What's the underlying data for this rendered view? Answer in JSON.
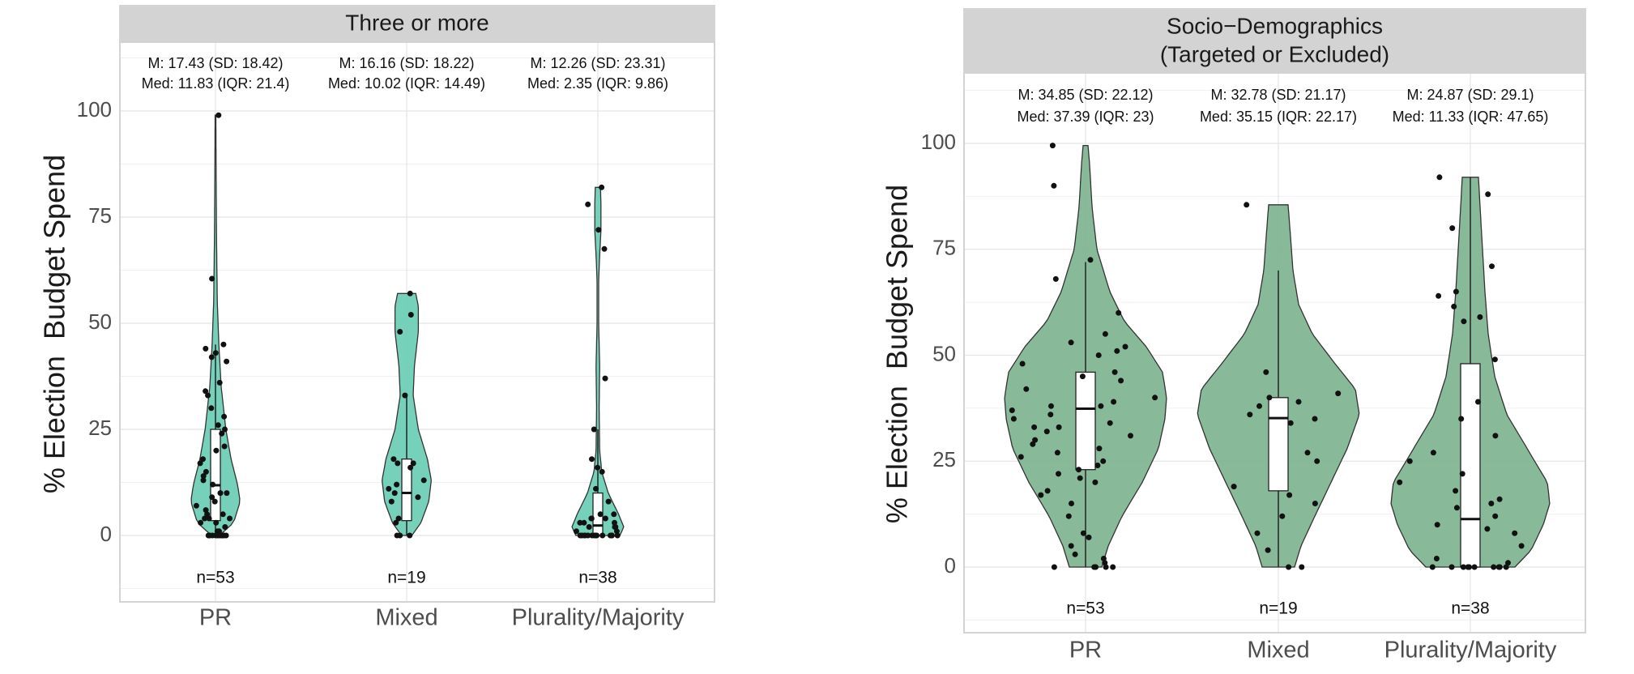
{
  "chart_data": [
    {
      "type": "violin",
      "facet_title": "Three or more",
      "ylabel": "% Election  Budget Spend",
      "ylim": [
        -15,
        115
      ],
      "y_ticks": [
        0,
        25,
        50,
        75,
        100
      ],
      "grid": true,
      "fill_color": "#6ecfb5",
      "categories": [
        {
          "label": "PR",
          "n_label": "n=53",
          "stats_line1": "M: 17.43 (SD: 18.42)",
          "stats_line2": "Med: 11.83 (IQR: 21.4)",
          "median": 11.83,
          "q1": 3.5,
          "q3": 25,
          "whisker_low": 0,
          "whisker_high": 45,
          "max": 99,
          "density_profile": [
            [
              0,
              0.15
            ],
            [
              3,
              0.7
            ],
            [
              8,
              0.95
            ],
            [
              12,
              0.85
            ],
            [
              18,
              0.6
            ],
            [
              25,
              0.4
            ],
            [
              35,
              0.22
            ],
            [
              45,
              0.13
            ],
            [
              55,
              0.07
            ],
            [
              70,
              0.04
            ],
            [
              85,
              0.025
            ],
            [
              99,
              0.015
            ]
          ],
          "points": [
            99,
            60.5,
            45,
            44,
            43,
            41,
            42,
            36,
            34,
            33,
            30,
            28,
            26,
            25,
            24,
            21,
            20,
            18,
            17,
            15,
            14,
            13,
            12,
            10,
            10,
            9,
            8,
            7,
            6,
            5,
            5,
            4,
            4,
            4,
            3,
            3,
            2,
            1,
            1,
            0,
            0,
            0,
            0,
            0,
            0,
            0,
            0,
            0,
            0,
            0,
            0,
            0,
            0
          ]
        },
        {
          "label": "Mixed",
          "n_label": "n=19",
          "stats_line1": "M: 16.16 (SD: 18.22)",
          "stats_line2": "Med: 10.02 (IQR: 14.49)",
          "median": 10.02,
          "q1": 3.5,
          "q3": 18,
          "whisker_low": 0,
          "whisker_high": 33.5,
          "max": 57,
          "density_profile": [
            [
              0,
              0.2
            ],
            [
              3,
              0.55
            ],
            [
              8,
              0.85
            ],
            [
              13,
              0.95
            ],
            [
              18,
              0.8
            ],
            [
              25,
              0.45
            ],
            [
              33,
              0.25
            ],
            [
              40,
              0.3
            ],
            [
              48,
              0.45
            ],
            [
              54,
              0.45
            ],
            [
              57,
              0.35
            ]
          ],
          "points": [
            57,
            52,
            48,
            33,
            18,
            17,
            17,
            16,
            13,
            12,
            11,
            10,
            9,
            8,
            4,
            3,
            0,
            0,
            0
          ]
        },
        {
          "label": "Plurality/Majority",
          "n_label": "n=38",
          "stats_line1": "M: 12.26 (SD: 23.31)",
          "stats_line2": "Med: 2.35 (IQR: 9.86)",
          "median": 2.35,
          "q1": 0,
          "q3": 10,
          "whisker_low": 0,
          "whisker_high": 25,
          "max": 82,
          "density_profile": [
            [
              0,
              0.85
            ],
            [
              2,
              1.0
            ],
            [
              5,
              0.8
            ],
            [
              10,
              0.4
            ],
            [
              15,
              0.15
            ],
            [
              20,
              0.07
            ],
            [
              30,
              0.05
            ],
            [
              40,
              0.07
            ],
            [
              50,
              0.03
            ],
            [
              60,
              0.03
            ],
            [
              66,
              0.07
            ],
            [
              72,
              0.12
            ],
            [
              78,
              0.12
            ],
            [
              82,
              0.1
            ]
          ],
          "points": [
            82,
            78,
            72,
            67.5,
            37,
            25,
            18,
            16,
            15,
            11,
            8,
            5,
            5,
            4,
            4,
            4,
            3,
            3,
            3,
            2,
            2,
            2,
            1,
            1,
            0,
            0,
            0,
            0,
            0,
            0,
            0,
            0,
            0,
            0,
            0,
            0,
            0,
            0
          ]
        }
      ]
    },
    {
      "type": "violin",
      "facet_title_line1": "Socio−Demographics",
      "facet_title_line2": "(Targeted or Excluded)",
      "ylabel": "% Election  Budget Spend",
      "ylim": [
        -15,
        115
      ],
      "y_ticks": [
        0,
        25,
        50,
        75,
        100
      ],
      "grid": true,
      "fill_color": "#82b592",
      "categories": [
        {
          "label": "PR",
          "n_label": "n=53",
          "stats_line1": "M: 34.85 (SD: 22.12)",
          "stats_line2": "Med: 37.39 (IQR: 23)",
          "median": 37.39,
          "q1": 23,
          "q3": 46,
          "whisker_low": 0,
          "whisker_high": 72,
          "max": 99.5,
          "density_profile": [
            [
              0,
              0.2
            ],
            [
              5,
              0.28
            ],
            [
              12,
              0.45
            ],
            [
              20,
              0.7
            ],
            [
              28,
              0.9
            ],
            [
              35,
              0.98
            ],
            [
              40,
              1.0
            ],
            [
              46,
              0.95
            ],
            [
              52,
              0.75
            ],
            [
              58,
              0.48
            ],
            [
              65,
              0.3
            ],
            [
              75,
              0.14
            ],
            [
              85,
              0.08
            ],
            [
              95,
              0.05
            ],
            [
              99.5,
              0.03
            ]
          ],
          "points": [
            99.5,
            90,
            72.5,
            68,
            60,
            55,
            53,
            52,
            51,
            50,
            48,
            46,
            45,
            44,
            42,
            40,
            39,
            38,
            38,
            37,
            36,
            35,
            34,
            33,
            33,
            32,
            31,
            30,
            29,
            28,
            27,
            26,
            25,
            24,
            23,
            22,
            21,
            20,
            18,
            17,
            15,
            12,
            8,
            7,
            5,
            3,
            2,
            1,
            0,
            0,
            0,
            0,
            0
          ]
        },
        {
          "label": "Mixed",
          "n_label": "n=19",
          "stats_line1": "M: 32.78 (SD: 21.17)",
          "stats_line2": "Med: 35.15 (IQR: 22.17)",
          "median": 35.15,
          "q1": 18,
          "q3": 40,
          "whisker_low": 0,
          "whisker_high": 70,
          "max": 85.5,
          "density_profile": [
            [
              0,
              0.2
            ],
            [
              5,
              0.28
            ],
            [
              12,
              0.45
            ],
            [
              20,
              0.65
            ],
            [
              28,
              0.85
            ],
            [
              36,
              1.0
            ],
            [
              42,
              0.95
            ],
            [
              48,
              0.7
            ],
            [
              55,
              0.42
            ],
            [
              62,
              0.25
            ],
            [
              70,
              0.18
            ],
            [
              78,
              0.15
            ],
            [
              85.5,
              0.12
            ]
          ],
          "points": [
            85.5,
            46,
            41,
            40,
            39,
            38,
            36,
            35,
            34,
            27,
            25,
            19,
            17,
            15,
            12,
            8,
            4,
            0,
            0
          ]
        },
        {
          "label": "Plurality/Majority",
          "n_label": "n=38",
          "stats_line1": "M: 24.87 (SD: 29.1)",
          "stats_line2": "Med: 11.33 (IQR: 47.65)",
          "median": 11.33,
          "q1": 0,
          "q3": 48,
          "whisker_low": 0,
          "whisker_high": 92,
          "max": 92,
          "density_profile": [
            [
              0,
              0.55
            ],
            [
              4,
              0.75
            ],
            [
              10,
              0.9
            ],
            [
              15,
              0.98
            ],
            [
              20,
              0.95
            ],
            [
              28,
              0.7
            ],
            [
              36,
              0.45
            ],
            [
              45,
              0.3
            ],
            [
              55,
              0.22
            ],
            [
              65,
              0.18
            ],
            [
              75,
              0.15
            ],
            [
              85,
              0.12
            ],
            [
              92,
              0.1
            ]
          ],
          "points": [
            92,
            88,
            80,
            71,
            65,
            64,
            61.5,
            59,
            58,
            49,
            39,
            35,
            31,
            27,
            25,
            22,
            20,
            18,
            16,
            15,
            14,
            12,
            10,
            9,
            8,
            5,
            2,
            1,
            0,
            0,
            0,
            0,
            0,
            0,
            0,
            0,
            0,
            0
          ]
        }
      ]
    }
  ]
}
